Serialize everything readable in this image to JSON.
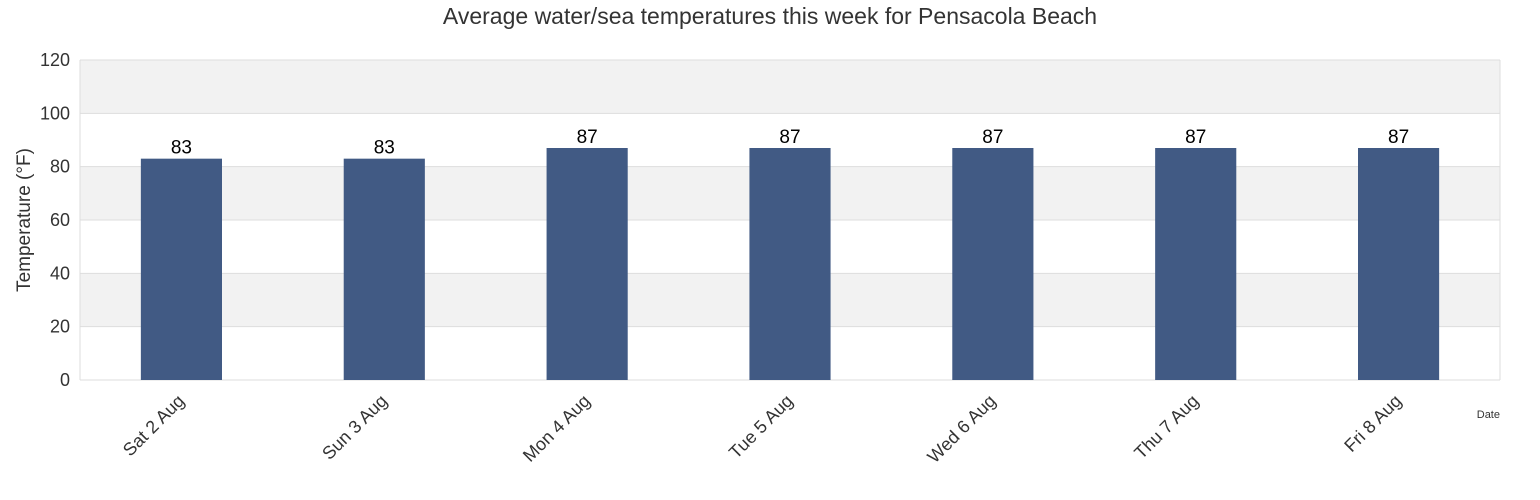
{
  "chart_data": {
    "type": "bar",
    "title": "Average water/sea temperatures this week for Pensacola Beach",
    "xlabel": "Date",
    "ylabel": "Temperature (°F)",
    "categories": [
      "Sat 2 Aug",
      "Sun 3 Aug",
      "Mon 4 Aug",
      "Tue 5 Aug",
      "Wed 6 Aug",
      "Thu 7 Aug",
      "Fri 8 Aug"
    ],
    "values": [
      83,
      83,
      87,
      87,
      87,
      87,
      87
    ],
    "ylim": [
      0,
      120
    ],
    "yticks": [
      0,
      20,
      40,
      60,
      80,
      100,
      120
    ],
    "grid": true,
    "legend": "none",
    "colors": {
      "bar": "#415a84",
      "band": "#f2f2f2",
      "grid": "#dddddd"
    }
  }
}
